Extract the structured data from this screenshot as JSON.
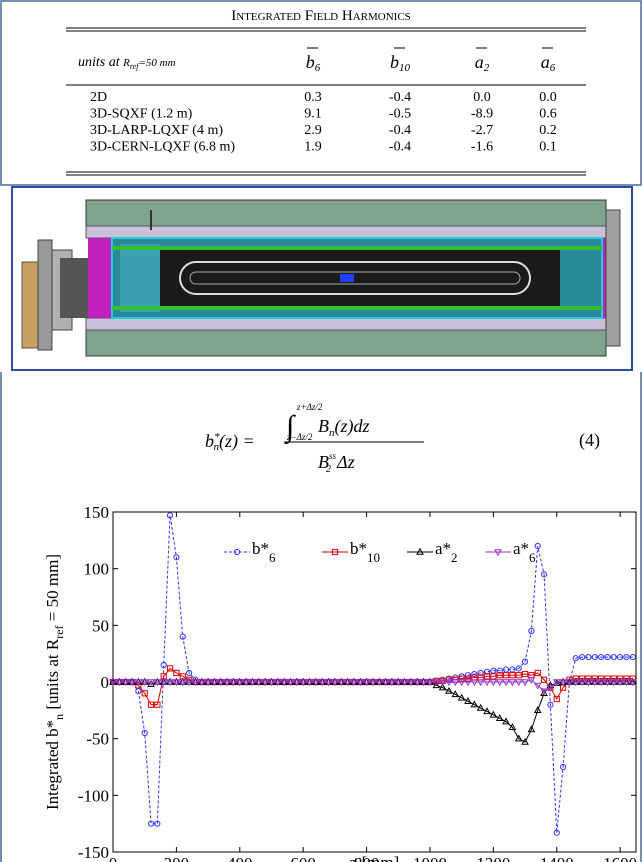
{
  "table": {
    "title": "Integrated Field Harmonics",
    "header": {
      "prefix": "units at ",
      "symbol": "R",
      "symbol_sub": "ref",
      "suffix": "=50 mm"
    },
    "columns": [
      {
        "base": "b",
        "sub": "6"
      },
      {
        "base": "b",
        "sub": "10"
      },
      {
        "base": "a",
        "sub": "2"
      },
      {
        "base": "a",
        "sub": "6"
      }
    ],
    "rows": [
      [
        "2D",
        "0.3",
        "-0.4",
        "0.0",
        "0.0"
      ],
      [
        "3D-SQXF (1.2 m)",
        "9.1",
        "-0.5",
        "-8.9",
        "0.6"
      ],
      [
        "3D-LARP-LQXF  (4 m)",
        "2.9",
        "-0.4",
        "-2.7",
        "0.2"
      ],
      [
        "3D-CERN-LQXF (6.8 m)",
        "1.9",
        "-0.4",
        "-1.6",
        "0.1"
      ]
    ]
  },
  "equation": {
    "lhs": "b",
    "lhs_sup": "*",
    "lhs_sub": "n",
    "lhs_arg": "(z) =",
    "integral": "∫",
    "upper": "z+Δz/2",
    "lower": "z−Δz/2",
    "integrand": "B",
    "integrand_sub": "n",
    "integrand_rest": "(z)dz",
    "den": "B",
    "den_sub": "2",
    "den_sup": "ss",
    "den_rest": "Δz",
    "number": "(4)"
  },
  "chart_data": {
    "type": "line",
    "xlabel": "z [mm]",
    "ylabel": [
      "Integrated b*",
      "n",
      " [units at R",
      "ref",
      " = 50 mm]"
    ],
    "xlim": [
      0,
      1650
    ],
    "ylim": [
      -150,
      150
    ],
    "xticks": [
      0,
      200,
      400,
      600,
      800,
      1000,
      1200,
      1400,
      1600
    ],
    "yticks": [
      -150,
      -100,
      -50,
      0,
      50,
      100,
      150
    ],
    "legend": "top",
    "x": [
      0,
      20,
      40,
      60,
      80,
      100,
      120,
      140,
      160,
      180,
      200,
      220,
      240,
      260,
      280,
      300,
      320,
      340,
      360,
      380,
      400,
      420,
      440,
      460,
      480,
      500,
      520,
      540,
      560,
      580,
      600,
      620,
      640,
      660,
      680,
      700,
      720,
      740,
      760,
      780,
      800,
      820,
      840,
      860,
      880,
      900,
      920,
      940,
      960,
      980,
      1000,
      1020,
      1040,
      1060,
      1080,
      1100,
      1120,
      1140,
      1160,
      1180,
      1200,
      1220,
      1240,
      1260,
      1280,
      1300,
      1320,
      1340,
      1360,
      1380,
      1400,
      1420,
      1440,
      1460,
      1480,
      1500,
      1520,
      1540,
      1560,
      1580,
      1600,
      1620,
      1640
    ],
    "series": [
      {
        "name": "b*",
        "name_sub": "6",
        "color": "#3333ff",
        "marker": "circle",
        "dashed": true,
        "values": [
          0,
          0,
          0,
          0,
          -8,
          -45,
          -125,
          -125,
          15,
          147,
          110,
          40,
          8,
          2,
          0,
          0,
          0,
          0,
          0,
          0,
          0,
          0,
          0,
          0,
          0,
          0,
          0,
          0,
          0,
          0,
          0,
          0,
          0,
          0,
          0,
          0,
          0,
          0,
          0,
          0,
          0,
          0,
          0,
          0,
          0,
          0,
          0,
          0,
          0,
          0,
          0,
          1,
          2,
          3,
          4,
          5,
          6,
          7,
          8,
          9,
          10,
          10,
          11,
          11,
          12,
          18,
          45,
          120,
          95,
          -20,
          -133,
          -75,
          0,
          21,
          22,
          22,
          22,
          22,
          22,
          22,
          22,
          22,
          22
        ]
      },
      {
        "name": "b*",
        "name_sub": "10",
        "color": "#e00000",
        "marker": "square",
        "dashed": false,
        "values": [
          0,
          0,
          0,
          0,
          -3,
          -10,
          -20,
          -20,
          5,
          12,
          8,
          5,
          2,
          0,
          0,
          0,
          0,
          0,
          0,
          0,
          0,
          0,
          0,
          0,
          0,
          0,
          0,
          0,
          0,
          0,
          0,
          0,
          0,
          0,
          0,
          0,
          0,
          0,
          0,
          0,
          0,
          0,
          0,
          0,
          0,
          0,
          0,
          0,
          0,
          0,
          0,
          1,
          1,
          2,
          2,
          3,
          3,
          4,
          4,
          5,
          5,
          6,
          6,
          6,
          6,
          7,
          6,
          8,
          2,
          -5,
          -15,
          -5,
          2,
          3,
          3,
          3,
          3,
          3,
          3,
          3,
          3,
          3,
          3
        ]
      },
      {
        "name": "a*",
        "name_sub": "2",
        "color": "#000000",
        "marker": "triangle",
        "dashed": false,
        "values": [
          0,
          0,
          0,
          0,
          0,
          0,
          -2,
          0,
          0,
          0,
          0,
          0,
          0,
          0,
          0,
          0,
          0,
          0,
          0,
          0,
          0,
          0,
          0,
          0,
          0,
          0,
          0,
          0,
          0,
          0,
          0,
          0,
          0,
          0,
          0,
          0,
          0,
          0,
          0,
          0,
          0,
          0,
          0,
          0,
          0,
          0,
          0,
          0,
          0,
          0,
          0,
          -3,
          -5,
          -8,
          -11,
          -14,
          -17,
          -20,
          -23,
          -26,
          -29,
          -32,
          -35,
          -40,
          -50,
          -53,
          -42,
          -25,
          -10,
          -3,
          -1,
          0,
          0,
          0,
          0,
          0,
          0,
          0,
          0,
          0,
          0,
          0,
          0
        ]
      },
      {
        "name": "a*",
        "name_sub": "6",
        "color": "#9933cc",
        "marker": "triangle-down",
        "dashed": false,
        "values": [
          0,
          0,
          0,
          0,
          0,
          0,
          0,
          0,
          0,
          0,
          0,
          0,
          0,
          0,
          0,
          0,
          0,
          0,
          0,
          0,
          0,
          0,
          0,
          0,
          0,
          0,
          0,
          0,
          0,
          0,
          0,
          0,
          0,
          0,
          0,
          0,
          0,
          0,
          0,
          0,
          0,
          0,
          0,
          0,
          0,
          0,
          0,
          0,
          0,
          0,
          0,
          0,
          0,
          0,
          0,
          0,
          0,
          0,
          0,
          0,
          0,
          0,
          0,
          0,
          0,
          0,
          2,
          -3,
          -8,
          -5,
          0,
          0,
          0,
          0,
          0,
          0,
          0,
          0,
          0,
          0,
          0,
          0,
          0
        ]
      }
    ]
  }
}
